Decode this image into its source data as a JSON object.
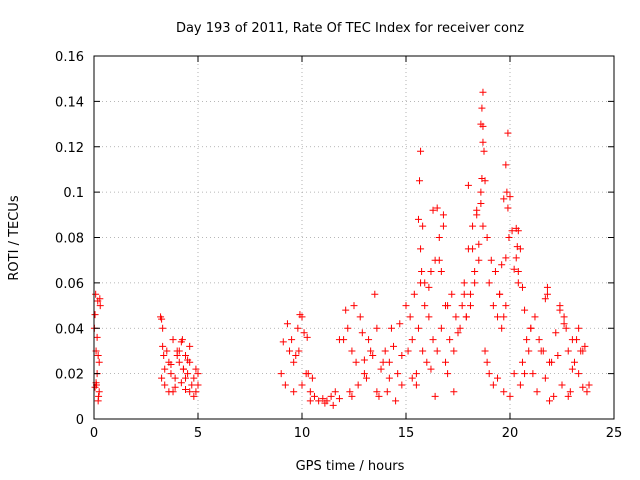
{
  "chart_data": {
    "type": "scatter",
    "title": "Day 193 of 2011, Rate Of TEC Index for receiver conz",
    "xlabel": "GPS time / hours",
    "ylabel": "ROTI / TECUs",
    "xlim": [
      0,
      25
    ],
    "ylim": [
      0,
      0.16
    ],
    "xticks": [
      "0",
      "5",
      "10",
      "15",
      "20",
      "25"
    ],
    "xtick_values": [
      0,
      5,
      10,
      15,
      20,
      25
    ],
    "yticks": [
      "0",
      "0.02",
      "0.04",
      "0.06",
      "0.08",
      "0.1",
      "0.12",
      "0.14",
      "0.16"
    ],
    "ytick_values": [
      0,
      0.02,
      0.04,
      0.06,
      0.08,
      0.1,
      0.12,
      0.14,
      0.16
    ],
    "grid": true,
    "marker": "plus",
    "color": "#ff0000",
    "series": [
      {
        "x": [
          0.02,
          0.05,
          0.08,
          0.1,
          0.12,
          0.15,
          0.18,
          0.2,
          0.22,
          0.25,
          0.28,
          0.3,
          0.05,
          0.1,
          0.15,
          0.2,
          0.25,
          3.2,
          3.25,
          3.3,
          3.35,
          3.4,
          3.3,
          3.25,
          3.4,
          3.5,
          3.6,
          3.7,
          3.8,
          3.9,
          4.0,
          4.1,
          4.2,
          4.3,
          4.4,
          4.5,
          4.6,
          4.7,
          4.8,
          4.9,
          5.0,
          3.6,
          3.8,
          4.0,
          4.2,
          4.4,
          4.6,
          4.8,
          5.0,
          4.1,
          4.3,
          4.5,
          3.7,
          4.9,
          4.25,
          4.6,
          3.9,
          4.4,
          9.0,
          9.2,
          9.4,
          9.6,
          9.8,
          10.0,
          10.2,
          10.4,
          10.6,
          10.8,
          11.0,
          11.2,
          11.4,
          11.6,
          11.8,
          9.3,
          9.5,
          9.7,
          9.9,
          10.1,
          10.3,
          10.5,
          9.1,
          9.6,
          10.0,
          10.4,
          9.85,
          10.25,
          11.1,
          11.5,
          12.0,
          12.2,
          12.4,
          12.6,
          12.8,
          13.0,
          13.2,
          13.4,
          13.6,
          13.8,
          14.0,
          14.2,
          14.4,
          14.6,
          14.8,
          12.1,
          12.3,
          12.5,
          12.7,
          12.9,
          13.1,
          13.3,
          13.5,
          13.7,
          13.9,
          14.1,
          14.3,
          14.5,
          14.7,
          11.8,
          12.4,
          13.0,
          13.6,
          14.2,
          14.8,
          15.0,
          15.1,
          15.2,
          15.3,
          15.4,
          15.5,
          15.6,
          15.7,
          15.8,
          15.9,
          16.0,
          16.1,
          16.2,
          16.3,
          16.4,
          16.5,
          16.6,
          16.7,
          16.8,
          16.9,
          17.0,
          17.1,
          17.2,
          17.3,
          17.4,
          17.5,
          15.6,
          15.65,
          15.7,
          15.7,
          15.75,
          15.8,
          15.9,
          16.1,
          16.3,
          16.5,
          16.6,
          16.7,
          16.8,
          16.9,
          15.3,
          15.5,
          16.2,
          16.4,
          17.0,
          17.3,
          17.6,
          17.7,
          17.8,
          17.9,
          18.0,
          18.1,
          18.2,
          18.3,
          18.4,
          18.5,
          18.6,
          18.7,
          18.8,
          18.9,
          19.0,
          19.1,
          19.2,
          19.3,
          19.4,
          19.5,
          18.6,
          18.65,
          18.7,
          18.7,
          18.75,
          18.7,
          18.65,
          18.6,
          18.5,
          18.4,
          18.3,
          18.2,
          18.1,
          18.0,
          17.9,
          17.8,
          18.8,
          18.9,
          19.0,
          19.2,
          19.4,
          19.5,
          19.6,
          19.7,
          19.8,
          19.9,
          20.0,
          20.1,
          20.2,
          20.3,
          20.4,
          20.5,
          20.6,
          20.7,
          20.8,
          20.9,
          21.0,
          19.8,
          19.85,
          19.9,
          19.95,
          19.8,
          19.7,
          19.6,
          20.3,
          20.35,
          20.4,
          20.4,
          20.2,
          20.5,
          20.6,
          20.7,
          19.7,
          20.0,
          21.0,
          21.2,
          21.4,
          21.6,
          21.8,
          22.0,
          22.2,
          22.4,
          22.6,
          22.8,
          23.0,
          23.2,
          23.4,
          23.6,
          23.8,
          21.1,
          21.3,
          21.5,
          21.7,
          21.9,
          22.1,
          22.3,
          22.5,
          22.7,
          22.9,
          23.1,
          23.3,
          23.5,
          23.7,
          21.7,
          21.8,
          22.4,
          22.6,
          23.0,
          23.3,
          23.5,
          21.9,
          22.8
        ],
        "y": [
          0.04,
          0.046,
          0.055,
          0.03,
          0.015,
          0.02,
          0.052,
          0.008,
          0.01,
          0.025,
          0.053,
          0.05,
          0.014,
          0.016,
          0.036,
          0.028,
          0.012,
          0.045,
          0.044,
          0.04,
          0.028,
          0.022,
          0.032,
          0.018,
          0.015,
          0.03,
          0.025,
          0.02,
          0.035,
          0.018,
          0.03,
          0.025,
          0.034,
          0.022,
          0.028,
          0.02,
          0.032,
          0.015,
          0.018,
          0.022,
          0.02,
          0.012,
          0.012,
          0.028,
          0.016,
          0.013,
          0.012,
          0.01,
          0.015,
          0.03,
          0.022,
          0.026,
          0.024,
          0.012,
          0.035,
          0.025,
          0.014,
          0.018,
          0.02,
          0.015,
          0.03,
          0.025,
          0.04,
          0.045,
          0.02,
          0.012,
          0.01,
          0.008,
          0.009,
          0.008,
          0.01,
          0.012,
          0.009,
          0.042,
          0.035,
          0.028,
          0.046,
          0.038,
          0.02,
          0.018,
          0.034,
          0.012,
          0.015,
          0.008,
          0.03,
          0.036,
          0.007,
          0.006,
          0.035,
          0.04,
          0.03,
          0.025,
          0.045,
          0.02,
          0.035,
          0.028,
          0.04,
          0.022,
          0.03,
          0.025,
          0.032,
          0.02,
          0.028,
          0.048,
          0.012,
          0.05,
          0.015,
          0.038,
          0.018,
          0.03,
          0.055,
          0.01,
          0.025,
          0.012,
          0.04,
          0.008,
          0.042,
          0.035,
          0.01,
          0.026,
          0.012,
          0.018,
          0.015,
          0.05,
          0.03,
          0.045,
          0.035,
          0.055,
          0.02,
          0.04,
          0.06,
          0.03,
          0.05,
          0.025,
          0.045,
          0.065,
          0.035,
          0.07,
          0.03,
          0.08,
          0.04,
          0.09,
          0.025,
          0.05,
          0.035,
          0.055,
          0.03,
          0.045,
          0.038,
          0.088,
          0.105,
          0.118,
          0.075,
          0.065,
          0.085,
          0.06,
          0.058,
          0.092,
          0.093,
          0.07,
          0.065,
          0.085,
          0.05,
          0.018,
          0.015,
          0.022,
          0.01,
          0.02,
          0.012,
          0.04,
          0.05,
          0.06,
          0.045,
          0.075,
          0.055,
          0.085,
          0.06,
          0.09,
          0.07,
          0.1,
          0.085,
          0.105,
          0.08,
          0.06,
          0.07,
          0.05,
          0.065,
          0.045,
          0.055,
          0.13,
          0.137,
          0.144,
          0.129,
          0.118,
          0.122,
          0.106,
          0.095,
          0.077,
          0.092,
          0.065,
          0.075,
          0.05,
          0.103,
          0.045,
          0.055,
          0.03,
          0.025,
          0.02,
          0.015,
          0.018,
          0.055,
          0.068,
          0.097,
          0.112,
          0.126,
          0.098,
          0.083,
          0.066,
          0.071,
          0.083,
          0.075,
          0.058,
          0.048,
          0.035,
          0.03,
          0.04,
          0.071,
          0.1,
          0.093,
          0.08,
          0.05,
          0.045,
          0.04,
          0.084,
          0.076,
          0.065,
          0.06,
          0.02,
          0.015,
          0.025,
          0.02,
          0.012,
          0.01,
          0.04,
          0.045,
          0.035,
          0.03,
          0.058,
          0.025,
          0.038,
          0.048,
          0.042,
          0.03,
          0.022,
          0.035,
          0.03,
          0.032,
          0.015,
          0.02,
          0.012,
          0.03,
          0.018,
          0.025,
          0.01,
          0.028,
          0.015,
          0.04,
          0.012,
          0.025,
          0.02,
          0.014,
          0.012,
          0.053,
          0.055,
          0.05,
          0.045,
          0.035,
          0.04,
          0.03,
          0.008,
          0.01
        ]
      }
    ]
  }
}
